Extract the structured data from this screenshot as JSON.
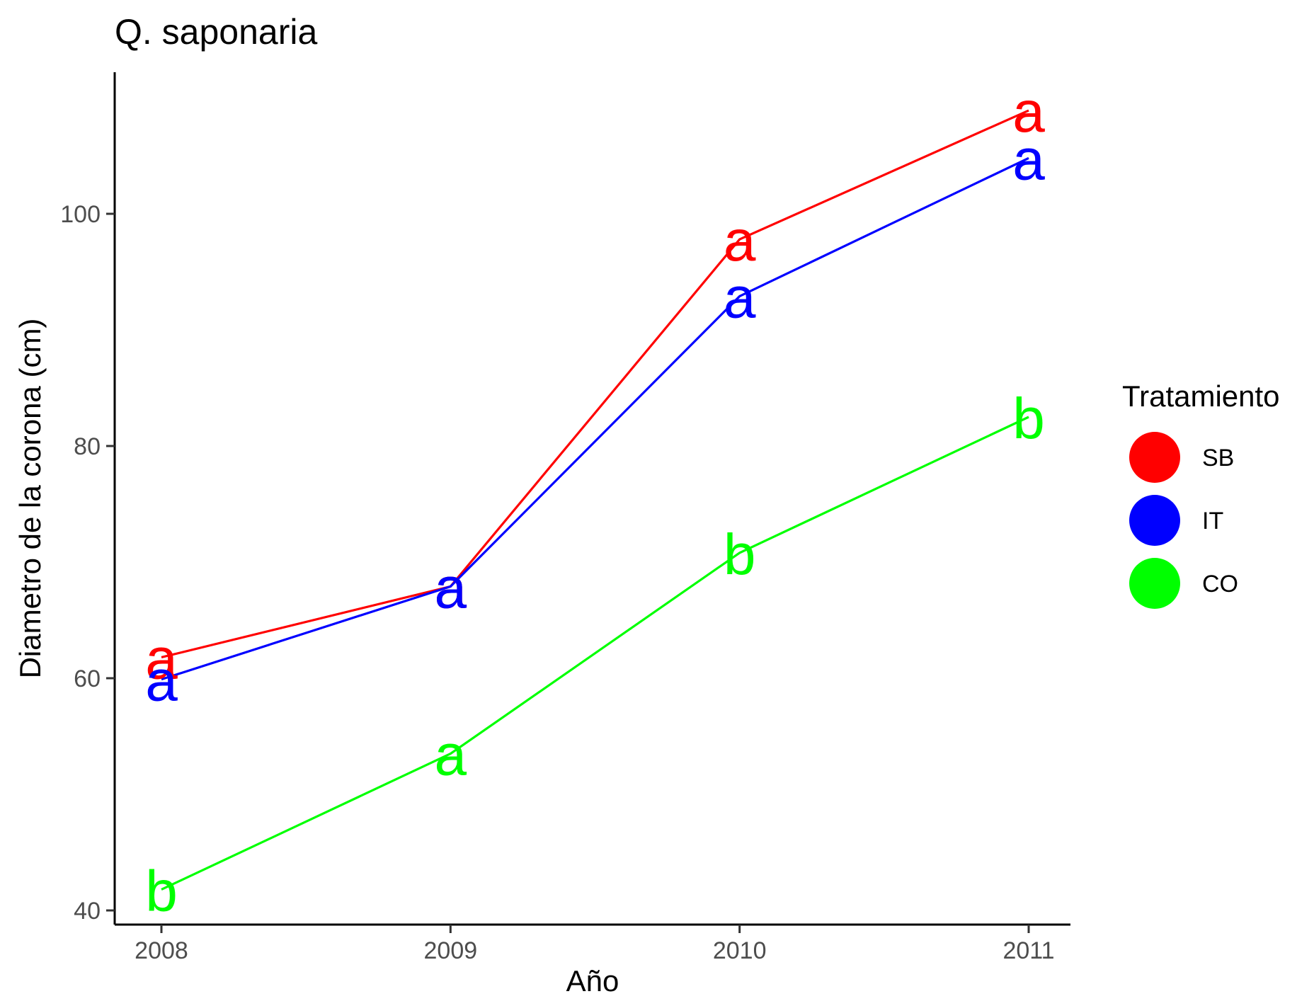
{
  "chart_data": {
    "type": "line",
    "title": "Q. saponaria",
    "xlabel": "Año",
    "ylabel": "Diametro de la corona (cm)",
    "x": [
      "2008",
      "2009",
      "2010",
      "2011"
    ],
    "ylim": [
      38.5,
      112
    ],
    "yticks": [
      40,
      60,
      80,
      100
    ],
    "grid": false,
    "legend": {
      "title": "Tratamiento",
      "position": "right",
      "entries": [
        "SB",
        "IT",
        "CO"
      ]
    },
    "series": [
      {
        "name": "SB",
        "color": "#ff0000",
        "values": [
          61.8,
          67.9,
          97.8,
          108.9
        ],
        "labels": [
          "a",
          "a",
          "a",
          "a"
        ]
      },
      {
        "name": "IT",
        "color": "#0000ff",
        "values": [
          59.9,
          67.9,
          92.9,
          104.8
        ],
        "labels": [
          "a",
          "a",
          "a",
          "a"
        ]
      },
      {
        "name": "CO",
        "color": "#00ff00",
        "values": [
          41.8,
          53.5,
          70.8,
          82.5
        ],
        "labels": [
          "b",
          "a",
          "b",
          "b"
        ]
      }
    ]
  }
}
